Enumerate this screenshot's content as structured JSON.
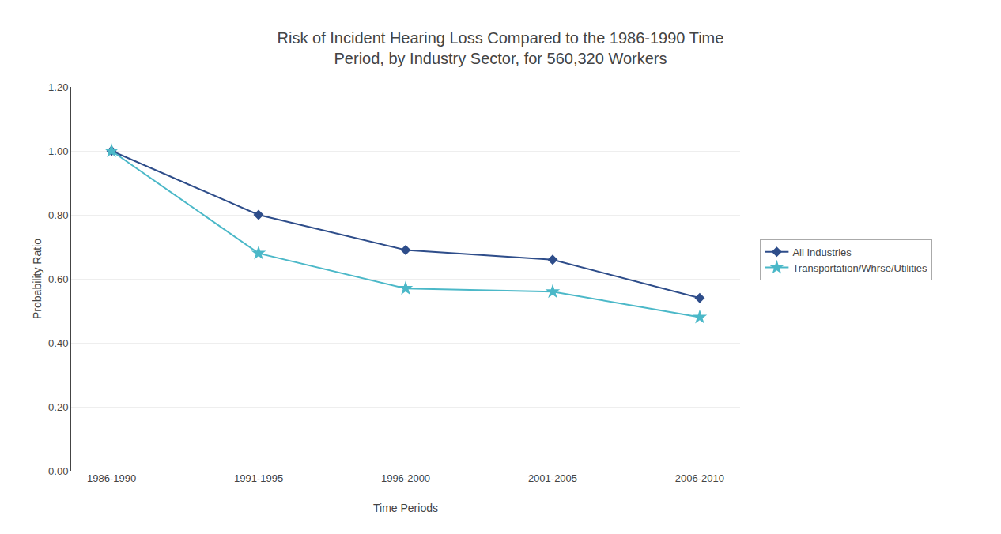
{
  "chart_data": {
    "type": "line",
    "title": "Risk of Incident Hearing Loss Compared to the 1986-1990 Time\nPeriod, by Industry Sector, for 560,320 Workers",
    "x_label": "Time Periods",
    "y_label": "Probability Ratio",
    "categories": [
      "1986-1990",
      "1991-1995",
      "1996-2000",
      "2001-2005",
      "2006-2010"
    ],
    "series": [
      {
        "name": "All Industries",
        "color": "#2E4D8A",
        "marker": "diamond",
        "values": [
          1.0,
          0.8,
          0.69,
          0.66,
          0.54
        ]
      },
      {
        "name": "Transportation/Whrse/Utilities",
        "color": "#4BB8C8",
        "marker": "star",
        "values": [
          1.0,
          0.68,
          0.57,
          0.56,
          0.48
        ]
      }
    ],
    "ylim": [
      0.0,
      1.2
    ],
    "yticks": [
      {
        "value": 0.0,
        "label": "0.00"
      },
      {
        "value": 0.2,
        "label": "0.20"
      },
      {
        "value": 0.4,
        "label": "0.40"
      },
      {
        "value": 0.6,
        "label": "0.60"
      },
      {
        "value": 0.8,
        "label": "0.80"
      },
      {
        "value": 1.0,
        "label": "1.00"
      },
      {
        "value": 1.2,
        "label": "1.20"
      }
    ],
    "grid": true,
    "legend": "right"
  }
}
